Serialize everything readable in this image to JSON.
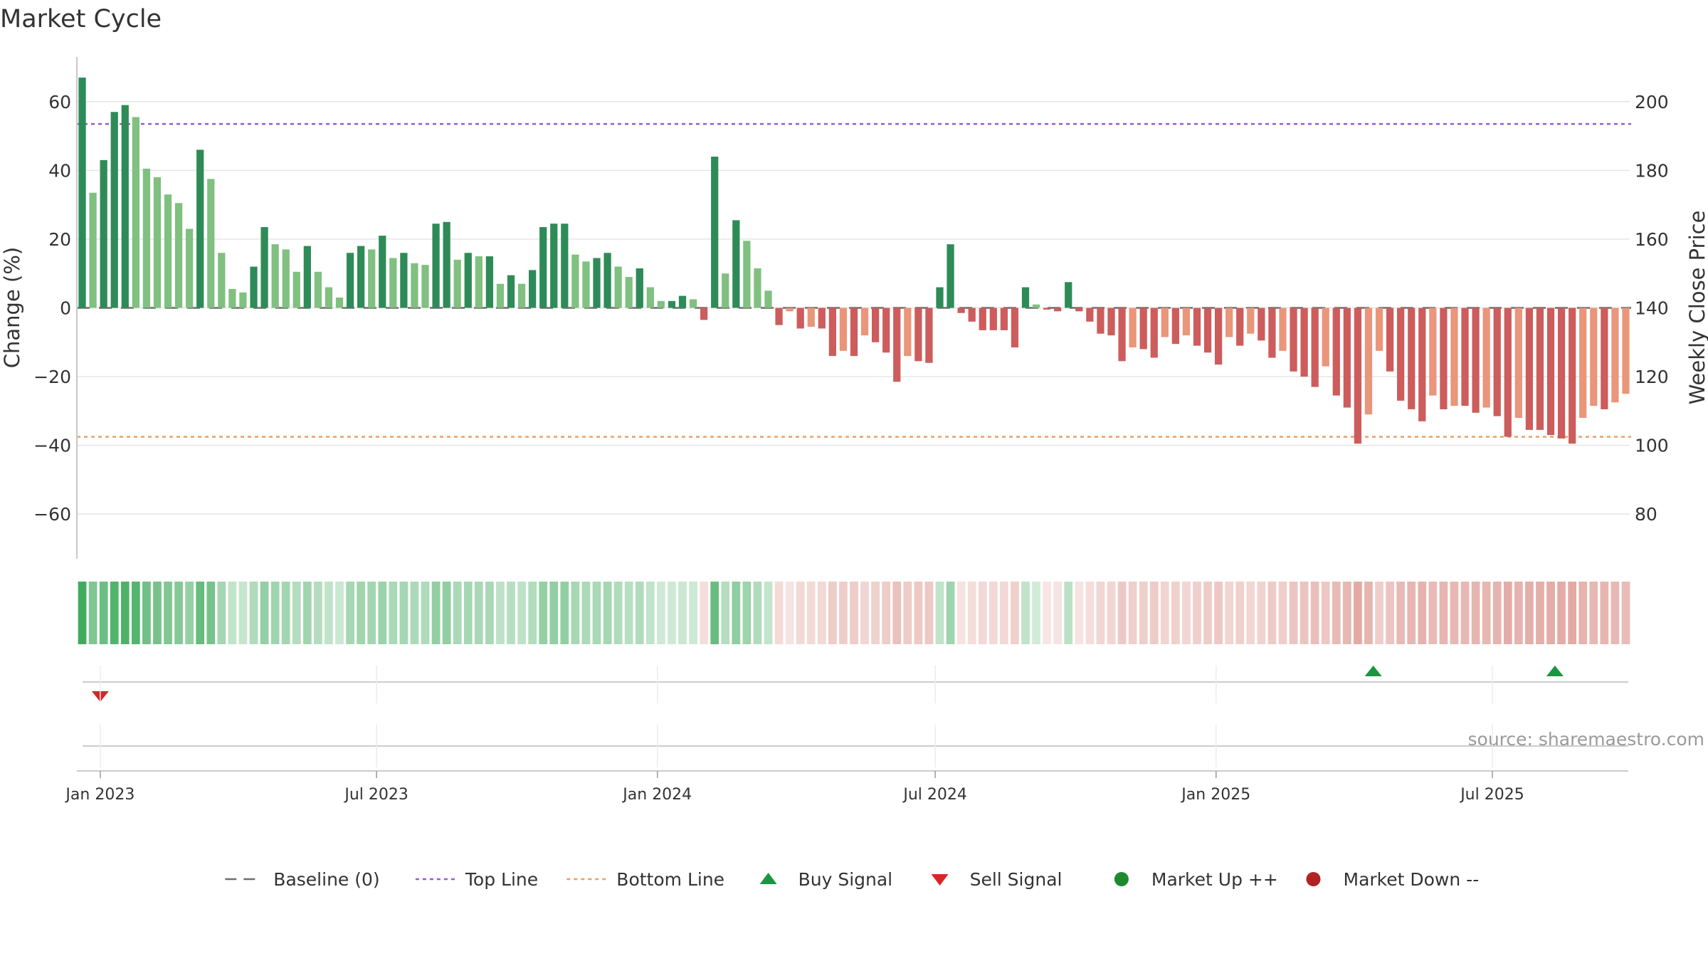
{
  "chart_data": {
    "type": "bar",
    "title": "Market Cycle",
    "source": "source: sharemaestro.com",
    "y_left": {
      "label": "Change (%)",
      "range": [
        -73,
        73
      ],
      "ticks": [
        60,
        40,
        20,
        0,
        -20,
        -40,
        -60
      ],
      "tick_labels": [
        "60",
        "40",
        "20",
        "0",
        "−20",
        "−40",
        "−60"
      ]
    },
    "y_right": {
      "label": "Weekly Close Price",
      "range": [
        67,
        213
      ],
      "ticks": [
        200,
        180,
        160,
        140,
        120,
        100,
        80
      ],
      "tick_labels": [
        "200",
        "180",
        "160",
        "140",
        "120",
        "100",
        "80"
      ]
    },
    "x_axis": {
      "start": "2022-12-19",
      "end": "2025-09-29",
      "ticks": [
        "2023-01-01",
        "2023-07-01",
        "2024-01-01",
        "2024-07-01",
        "2025-01-01",
        "2025-07-01"
      ],
      "tick_labels": [
        "Jan 2023",
        "Jul 2023",
        "Jan 2024",
        "Jul 2024",
        "Jan 2025",
        "Jul 2025"
      ]
    },
    "top_line": 53.5,
    "bottom_line": -37.5,
    "bar_dates": [
      "2022-12-19",
      "2022-12-26",
      "2023-01-02",
      "2023-01-09",
      "2023-01-16",
      "2023-01-23",
      "2023-01-30",
      "2023-02-06",
      "2023-02-13",
      "2023-02-20",
      "2023-02-27",
      "2023-03-06",
      "2023-03-13",
      "2023-03-20",
      "2023-03-27",
      "2023-04-03",
      "2023-04-10",
      "2023-04-17",
      "2023-04-24",
      "2023-05-01",
      "2023-05-08",
      "2023-05-15",
      "2023-05-22",
      "2023-05-29",
      "2023-06-05",
      "2023-06-12",
      "2023-06-19",
      "2023-06-26",
      "2023-07-03",
      "2023-07-10",
      "2023-07-17",
      "2023-07-24",
      "2023-07-31",
      "2023-08-07",
      "2023-08-14",
      "2023-08-21",
      "2023-08-28",
      "2023-09-04",
      "2023-09-11",
      "2023-09-18",
      "2023-09-25",
      "2023-10-02",
      "2023-10-09",
      "2023-10-16",
      "2023-10-23",
      "2023-10-30",
      "2023-11-06",
      "2023-11-13",
      "2023-11-20",
      "2023-11-27",
      "2023-12-04",
      "2023-12-11",
      "2023-12-18",
      "2023-12-25",
      "2024-01-01",
      "2024-01-08",
      "2024-01-15",
      "2024-01-22",
      "2024-01-29",
      "2024-02-05",
      "2024-02-12",
      "2024-02-19",
      "2024-02-26",
      "2024-03-04",
      "2024-03-11",
      "2024-03-18",
      "2024-03-25",
      "2024-04-01",
      "2024-04-08",
      "2024-04-15",
      "2024-04-22",
      "2024-04-29",
      "2024-05-06",
      "2024-05-13",
      "2024-05-20",
      "2024-05-27",
      "2024-06-03",
      "2024-06-10",
      "2024-06-17",
      "2024-06-24",
      "2024-07-01",
      "2024-07-08",
      "2024-07-15",
      "2024-07-22",
      "2024-07-29",
      "2024-08-05",
      "2024-08-12",
      "2024-08-19",
      "2024-08-26",
      "2024-09-02",
      "2024-09-09",
      "2024-09-16",
      "2024-09-23",
      "2024-09-30",
      "2024-10-07",
      "2024-10-14",
      "2024-10-21",
      "2024-10-28",
      "2024-11-04",
      "2024-11-11",
      "2024-11-18",
      "2024-11-25",
      "2024-12-02",
      "2024-12-09",
      "2024-12-16",
      "2024-12-23",
      "2024-12-30",
      "2025-01-06",
      "2025-01-13",
      "2025-01-20",
      "2025-01-27",
      "2025-02-03",
      "2025-02-10",
      "2025-02-17",
      "2025-02-24",
      "2025-03-03",
      "2025-03-10",
      "2025-03-17",
      "2025-03-24",
      "2025-03-31",
      "2025-04-07",
      "2025-04-14",
      "2025-04-21",
      "2025-04-28",
      "2025-05-05",
      "2025-05-12",
      "2025-05-19",
      "2025-05-26",
      "2025-06-02",
      "2025-06-09",
      "2025-06-16",
      "2025-06-23",
      "2025-06-30",
      "2025-07-07",
      "2025-07-14",
      "2025-07-21",
      "2025-07-28",
      "2025-08-04",
      "2025-08-11",
      "2025-08-18",
      "2025-08-25",
      "2025-09-01",
      "2025-09-08",
      "2025-09-15",
      "2025-09-22"
    ],
    "values": [
      67,
      33.5,
      43,
      57,
      59,
      55.5,
      40.5,
      38,
      33,
      30.5,
      23,
      46,
      37.5,
      16,
      5.5,
      4.5,
      12,
      23.5,
      18.5,
      17,
      10.5,
      18,
      10.5,
      6,
      3,
      16,
      18,
      17,
      21,
      14.5,
      16,
      13,
      12.5,
      24.5,
      25,
      14,
      16,
      15,
      15,
      7,
      9.5,
      7,
      11,
      23.5,
      24.5,
      24.5,
      15.5,
      13.5,
      14.5,
      16,
      12,
      9,
      11.5,
      6,
      2,
      2,
      3.5,
      2.5,
      -3.5,
      44,
      10,
      25.5,
      19.5,
      11.5,
      5,
      -5,
      -1,
      -6,
      -5.5,
      -6,
      -14,
      -12.5,
      -14,
      -8,
      -10,
      -13,
      -21.5,
      -14,
      -15.5,
      -16,
      6,
      18.5,
      -1.5,
      -4,
      -6.5,
      -6.5,
      -6.5,
      -11.5,
      6,
      1,
      -0.5,
      -1,
      7.5,
      -1,
      -4,
      -7.5,
      -8,
      -15.5,
      -11.5,
      -12,
      -14.5,
      -8.5,
      -10.5,
      -8,
      -11,
      -13,
      -16.5,
      -8.5,
      -11,
      -7.5,
      -9.5,
      -14.5,
      -12.5,
      -18.5,
      -20,
      -23,
      -17,
      -25.5,
      -29,
      -39.5,
      -31,
      -12.5,
      -18.5,
      -27,
      -29.5,
      -33,
      -25.5,
      -29.5,
      -28.5,
      -28.5,
      -30.5,
      -29,
      -31.5,
      -37.5,
      -32,
      -35.5,
      -35.5,
      -37,
      -38,
      -39.5,
      -32,
      -28.5,
      -29.5,
      -27.5,
      -25
    ],
    "buy_signals": [
      "2025-04-14",
      "2025-08-11"
    ],
    "sell_signals": [
      "2023-01-01"
    ],
    "legend": {
      "position": "bottom-center",
      "items": [
        {
          "label": "Baseline (0)",
          "symbol": "dashed-line",
          "color": "#6e6e6e"
        },
        {
          "label": "Top Line",
          "symbol": "dotted-line",
          "color": "#9b59d0"
        },
        {
          "label": "Bottom Line",
          "symbol": "dotted-line",
          "color": "#e8a06a"
        },
        {
          "label": "Buy Signal",
          "symbol": "triangle-up",
          "color": "#1a9641"
        },
        {
          "label": "Sell Signal",
          "symbol": "triangle-down",
          "color": "#d62728"
        },
        {
          "label": "Market Up ++",
          "symbol": "circle",
          "color": "#1e8a2e"
        },
        {
          "label": "Market Down --",
          "symbol": "circle",
          "color": "#b22222"
        }
      ]
    },
    "grid": true,
    "colors": {
      "positive_strong": "#2e8b57",
      "positive_weak": "#80c080",
      "negative_strong": "#cd5c5c",
      "negative_weak": "#e9967a",
      "heat_positive": "#41ab5d",
      "heat_negative": "#d98c84"
    }
  }
}
